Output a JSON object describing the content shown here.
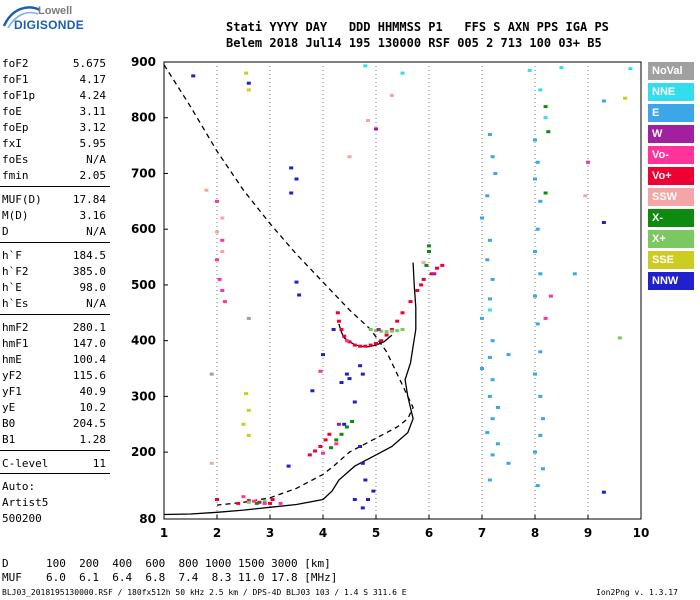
{
  "logo": {
    "top": "Lowell",
    "main": "DIGISONDE"
  },
  "header": {
    "line1": "Stati YYYY DAY   DDD HHMMSS P1   FFS S AXN PPS IGA PS",
    "line2": "Belem 2018 Jul14 195 130000 RSF 005 2 713 100 03+ B5"
  },
  "params": [
    {
      "name": "foF2",
      "value": "5.675"
    },
    {
      "name": "foF1",
      "value": "4.17"
    },
    {
      "name": "foF1p",
      "value": "4.24"
    },
    {
      "name": "foE",
      "value": "3.11"
    },
    {
      "name": "foEp",
      "value": "3.12"
    },
    {
      "name": "fxI",
      "value": "5.95"
    },
    {
      "name": "foEs",
      "value": "N/A"
    },
    {
      "name": "fmin",
      "value": "2.05"
    },
    {
      "name": "MUF(D)",
      "value": "17.84"
    },
    {
      "name": "M(D)",
      "value": "3.16"
    },
    {
      "name": "D",
      "value": "N/A"
    },
    {
      "name": "h`F",
      "value": "184.5"
    },
    {
      "name": "h`F2",
      "value": "385.0"
    },
    {
      "name": "h`E",
      "value": "98.0"
    },
    {
      "name": "h`Es",
      "value": "N/A"
    },
    {
      "name": "hmF2",
      "value": "280.1"
    },
    {
      "name": "hmF1",
      "value": "147.0"
    },
    {
      "name": "hmE",
      "value": "100.4"
    },
    {
      "name": "yF2",
      "value": "115.6"
    },
    {
      "name": "yF1",
      "value": "40.9"
    },
    {
      "name": "yE",
      "value": "10.2"
    },
    {
      "name": "B0",
      "value": "204.5"
    },
    {
      "name": "B1",
      "value": "1.28"
    },
    {
      "name": "C-level",
      "value": "11"
    }
  ],
  "auto": {
    "line1": "Auto:",
    "line2": "Artist5",
    "line3": "500200"
  },
  "footer": {
    "d_label": "D",
    "d_values": "100  200  400  600  800 1000 1500 3000 [km]",
    "muf_label": "MUF",
    "muf_values": "6.0  6.1  6.4  6.8  7.4  8.3 11.0 17.8 [MHz]",
    "info": "BLJ03_2018195130000.RSF / 180fx512h 50 kHz 2.5 km / DPS-4D BLJ03 103 / 1.4 S 311.6 E",
    "version": "Ion2Png v. 1.3.17"
  },
  "legend": [
    {
      "label": "NoVal",
      "color": "#a0a0a0"
    },
    {
      "label": "NNE",
      "color": "#33ddee"
    },
    {
      "label": "E",
      "color": "#3ba6e8"
    },
    {
      "label": "W",
      "color": "#a020a0"
    },
    {
      "label": "Vo-",
      "color": "#ff3399"
    },
    {
      "label": "Vo+",
      "color": "#ee0033"
    },
    {
      "label": "SSW",
      "color": "#f4a6a6"
    },
    {
      "label": "X-",
      "color": "#0e8a0e"
    },
    {
      "label": "X+",
      "color": "#7cc860"
    },
    {
      "label": "SSE",
      "color": "#cccc22"
    },
    {
      "label": "NNW",
      "color": "#2020cc"
    }
  ],
  "chart_data": {
    "type": "scatter",
    "title": "",
    "xlabel": "",
    "ylabel": "",
    "xlim": [
      1,
      10
    ],
    "ylim": [
      80,
      900
    ],
    "xticks": [
      1,
      2,
      3,
      4,
      5,
      6,
      7,
      8,
      9,
      10
    ],
    "yticks": [
      80,
      200,
      300,
      400,
      500,
      600,
      700,
      800,
      900
    ],
    "grid": true,
    "grid_style": "dotted vertical lines at integer MHz",
    "series": [
      {
        "name": "Vo+",
        "color": "#ee0033",
        "points": [
          [
            4.28,
            450
          ],
          [
            4.3,
            435
          ],
          [
            4.35,
            420
          ],
          [
            4.4,
            408
          ],
          [
            4.5,
            398
          ],
          [
            4.6,
            392
          ],
          [
            4.7,
            390
          ],
          [
            4.8,
            390
          ],
          [
            4.9,
            392
          ],
          [
            5.0,
            395
          ],
          [
            5.1,
            400
          ],
          [
            5.2,
            410
          ],
          [
            5.3,
            420
          ],
          [
            5.4,
            435
          ],
          [
            5.5,
            450
          ],
          [
            5.65,
            470
          ],
          [
            5.78,
            490
          ],
          [
            5.85,
            500
          ],
          [
            5.9,
            510
          ],
          [
            6.05,
            520
          ],
          [
            6.15,
            530
          ],
          [
            6.25,
            535
          ],
          [
            3.75,
            195
          ],
          [
            3.85,
            202
          ],
          [
            3.95,
            210
          ],
          [
            4.05,
            222
          ],
          [
            4.12,
            232
          ],
          [
            2.0,
            115
          ],
          [
            2.4,
            108
          ],
          [
            2.6,
            113
          ],
          [
            2.8,
            110
          ],
          [
            3.0,
            108
          ],
          [
            3.05,
            115
          ]
        ]
      },
      {
        "name": "X+",
        "color": "#7cc860",
        "points": [
          [
            4.9,
            420
          ],
          [
            5.0,
            418
          ],
          [
            5.1,
            417
          ],
          [
            5.2,
            416
          ],
          [
            5.3,
            417
          ],
          [
            5.4,
            418
          ],
          [
            5.5,
            420
          ],
          [
            2.6,
            110
          ],
          [
            2.9,
            112
          ],
          [
            9.6,
            405
          ]
        ]
      },
      {
        "name": "X-",
        "color": "#0e8a0e",
        "points": [
          [
            4.15,
            208
          ],
          [
            4.25,
            222
          ],
          [
            4.35,
            232
          ],
          [
            4.45,
            245
          ],
          [
            4.55,
            255
          ],
          [
            5.95,
            535
          ],
          [
            6.0,
            560
          ],
          [
            6.0,
            570
          ],
          [
            2.75,
            108
          ],
          [
            8.2,
            820
          ],
          [
            8.25,
            775
          ],
          [
            8.2,
            665
          ]
        ]
      },
      {
        "name": "E",
        "color": "#3ba6e8",
        "points": [
          [
            7.15,
            770
          ],
          [
            7.2,
            730
          ],
          [
            7.25,
            700
          ],
          [
            7.1,
            660
          ],
          [
            7.0,
            620
          ],
          [
            7.15,
            580
          ],
          [
            7.1,
            545
          ],
          [
            7.2,
            510
          ],
          [
            7.15,
            475
          ],
          [
            7.0,
            440
          ],
          [
            7.2,
            400
          ],
          [
            7.15,
            370
          ],
          [
            7.0,
            350
          ],
          [
            7.2,
            330
          ],
          [
            7.15,
            300
          ],
          [
            7.3,
            280
          ],
          [
            7.2,
            260
          ],
          [
            7.1,
            235
          ],
          [
            7.3,
            215
          ],
          [
            7.2,
            195
          ],
          [
            7.5,
            180
          ],
          [
            7.15,
            150
          ],
          [
            8.0,
            760
          ],
          [
            8.05,
            720
          ],
          [
            8.0,
            690
          ],
          [
            8.1,
            650
          ],
          [
            8.05,
            600
          ],
          [
            8.0,
            560
          ],
          [
            8.1,
            520
          ],
          [
            8.0,
            480
          ],
          [
            8.05,
            430
          ],
          [
            8.1,
            380
          ],
          [
            8.0,
            340
          ],
          [
            8.1,
            300
          ],
          [
            8.15,
            260
          ],
          [
            8.1,
            230
          ],
          [
            8.0,
            200
          ],
          [
            8.15,
            170
          ],
          [
            8.05,
            140
          ],
          [
            7.5,
            375
          ],
          [
            8.75,
            520
          ],
          [
            9.3,
            830
          ]
        ]
      },
      {
        "name": "NNE",
        "color": "#33ddee",
        "points": [
          [
            4.8,
            893
          ],
          [
            5.5,
            880
          ],
          [
            7.9,
            885
          ],
          [
            8.5,
            890
          ],
          [
            9.8,
            888
          ],
          [
            7.15,
            455
          ],
          [
            8.1,
            850
          ],
          [
            8.2,
            800
          ]
        ]
      },
      {
        "name": "Vo-",
        "color": "#ff3399",
        "points": [
          [
            2.0,
            650
          ],
          [
            2.1,
            580
          ],
          [
            2.0,
            545
          ],
          [
            2.05,
            510
          ],
          [
            2.1,
            490
          ],
          [
            2.15,
            470
          ],
          [
            2.5,
            120
          ],
          [
            2.7,
            112
          ],
          [
            2.9,
            108
          ],
          [
            3.2,
            108
          ],
          [
            4.0,
            198
          ],
          [
            4.25,
            215
          ],
          [
            4.45,
            400
          ],
          [
            3.95,
            345
          ],
          [
            9.0,
            720
          ],
          [
            8.3,
            480
          ],
          [
            8.2,
            440
          ]
        ]
      },
      {
        "name": "W",
        "color": "#a020a0",
        "points": [
          [
            5.05,
            420
          ],
          [
            6.1,
            520
          ],
          [
            5.0,
            780
          ],
          [
            4.3,
            250
          ]
        ]
      },
      {
        "name": "NNW",
        "color": "#2020cc",
        "points": [
          [
            1.55,
            875
          ],
          [
            2.6,
            862
          ],
          [
            3.4,
            710
          ],
          [
            3.5,
            690
          ],
          [
            3.4,
            665
          ],
          [
            3.5,
            505
          ],
          [
            3.55,
            482
          ],
          [
            4.2,
            420
          ],
          [
            4.0,
            375
          ],
          [
            3.8,
            310
          ],
          [
            4.35,
            325
          ],
          [
            4.45,
            340
          ],
          [
            4.7,
            355
          ],
          [
            4.75,
            340
          ],
          [
            4.5,
            332
          ],
          [
            4.6,
            290
          ],
          [
            4.4,
            250
          ],
          [
            4.7,
            210
          ],
          [
            4.75,
            180
          ],
          [
            4.8,
            150
          ],
          [
            4.95,
            130
          ],
          [
            4.85,
            115
          ],
          [
            4.6,
            115
          ],
          [
            4.75,
            100
          ],
          [
            3.35,
            175
          ],
          [
            9.3,
            128
          ],
          [
            9.3,
            612
          ]
        ]
      },
      {
        "name": "SSW",
        "color": "#f4a6a6",
        "points": [
          [
            1.8,
            670
          ],
          [
            2.1,
            620
          ],
          [
            2.0,
            595
          ],
          [
            2.1,
            560
          ],
          [
            1.9,
            180
          ],
          [
            4.85,
            795
          ],
          [
            8.95,
            660
          ],
          [
            5.3,
            840
          ],
          [
            4.5,
            730
          ],
          [
            5.9,
            540
          ]
        ]
      },
      {
        "name": "SSE",
        "color": "#cccc22",
        "points": [
          [
            2.55,
            880
          ],
          [
            2.6,
            850
          ],
          [
            2.55,
            305
          ],
          [
            2.6,
            275
          ],
          [
            2.5,
            250
          ],
          [
            2.6,
            230
          ],
          [
            9.7,
            835
          ]
        ]
      },
      {
        "name": "NoVal",
        "color": "#a0a0a0",
        "points": [
          [
            1.9,
            340
          ],
          [
            2.6,
            440
          ]
        ]
      }
    ],
    "profile_curves": [
      {
        "name": "dashed",
        "color": "#000000",
        "style": "dashed",
        "points": [
          [
            1.0,
            895
          ],
          [
            1.5,
            820
          ],
          [
            2.0,
            740
          ],
          [
            2.5,
            670
          ],
          [
            3.0,
            610
          ],
          [
            3.5,
            555
          ],
          [
            4.0,
            505
          ],
          [
            4.5,
            455
          ],
          [
            4.9,
            420
          ],
          [
            5.2,
            380
          ],
          [
            5.45,
            330
          ],
          [
            5.6,
            300
          ],
          [
            5.7,
            280
          ],
          [
            5.6,
            260
          ],
          [
            5.4,
            245
          ],
          [
            5.0,
            225
          ],
          [
            4.5,
            200
          ],
          [
            4.2,
            175
          ],
          [
            4.0,
            160
          ],
          [
            3.5,
            135
          ],
          [
            3.0,
            118
          ],
          [
            2.5,
            110
          ],
          [
            2.0,
            105
          ]
        ]
      },
      {
        "name": "solid",
        "color": "#000000",
        "style": "solid",
        "points": [
          [
            1.0,
            88
          ],
          [
            1.5,
            89
          ],
          [
            2.0,
            92
          ],
          [
            2.5,
            96
          ],
          [
            3.0,
            101
          ],
          [
            3.5,
            106
          ],
          [
            4.0,
            115
          ],
          [
            4.17,
            130
          ],
          [
            4.3,
            150
          ],
          [
            4.6,
            175
          ],
          [
            5.0,
            195
          ],
          [
            5.3,
            210
          ],
          [
            5.6,
            235
          ],
          [
            5.7,
            260
          ],
          [
            5.6,
            300
          ],
          [
            5.55,
            330
          ],
          [
            5.65,
            360
          ],
          [
            5.7,
            390
          ],
          [
            5.75,
            420
          ],
          [
            5.75,
            460
          ],
          [
            5.72,
            500
          ],
          [
            5.7,
            540
          ]
        ]
      },
      {
        "name": "solid-dark",
        "color": "#000000",
        "style": "solid",
        "points": [
          [
            4.3,
            430
          ],
          [
            4.35,
            415
          ],
          [
            4.4,
            405
          ],
          [
            4.5,
            398
          ],
          [
            4.6,
            393
          ],
          [
            4.7,
            390
          ],
          [
            4.85,
            389
          ],
          [
            5.0,
            392
          ],
          [
            5.15,
            398
          ],
          [
            5.3,
            410
          ]
        ]
      }
    ]
  }
}
